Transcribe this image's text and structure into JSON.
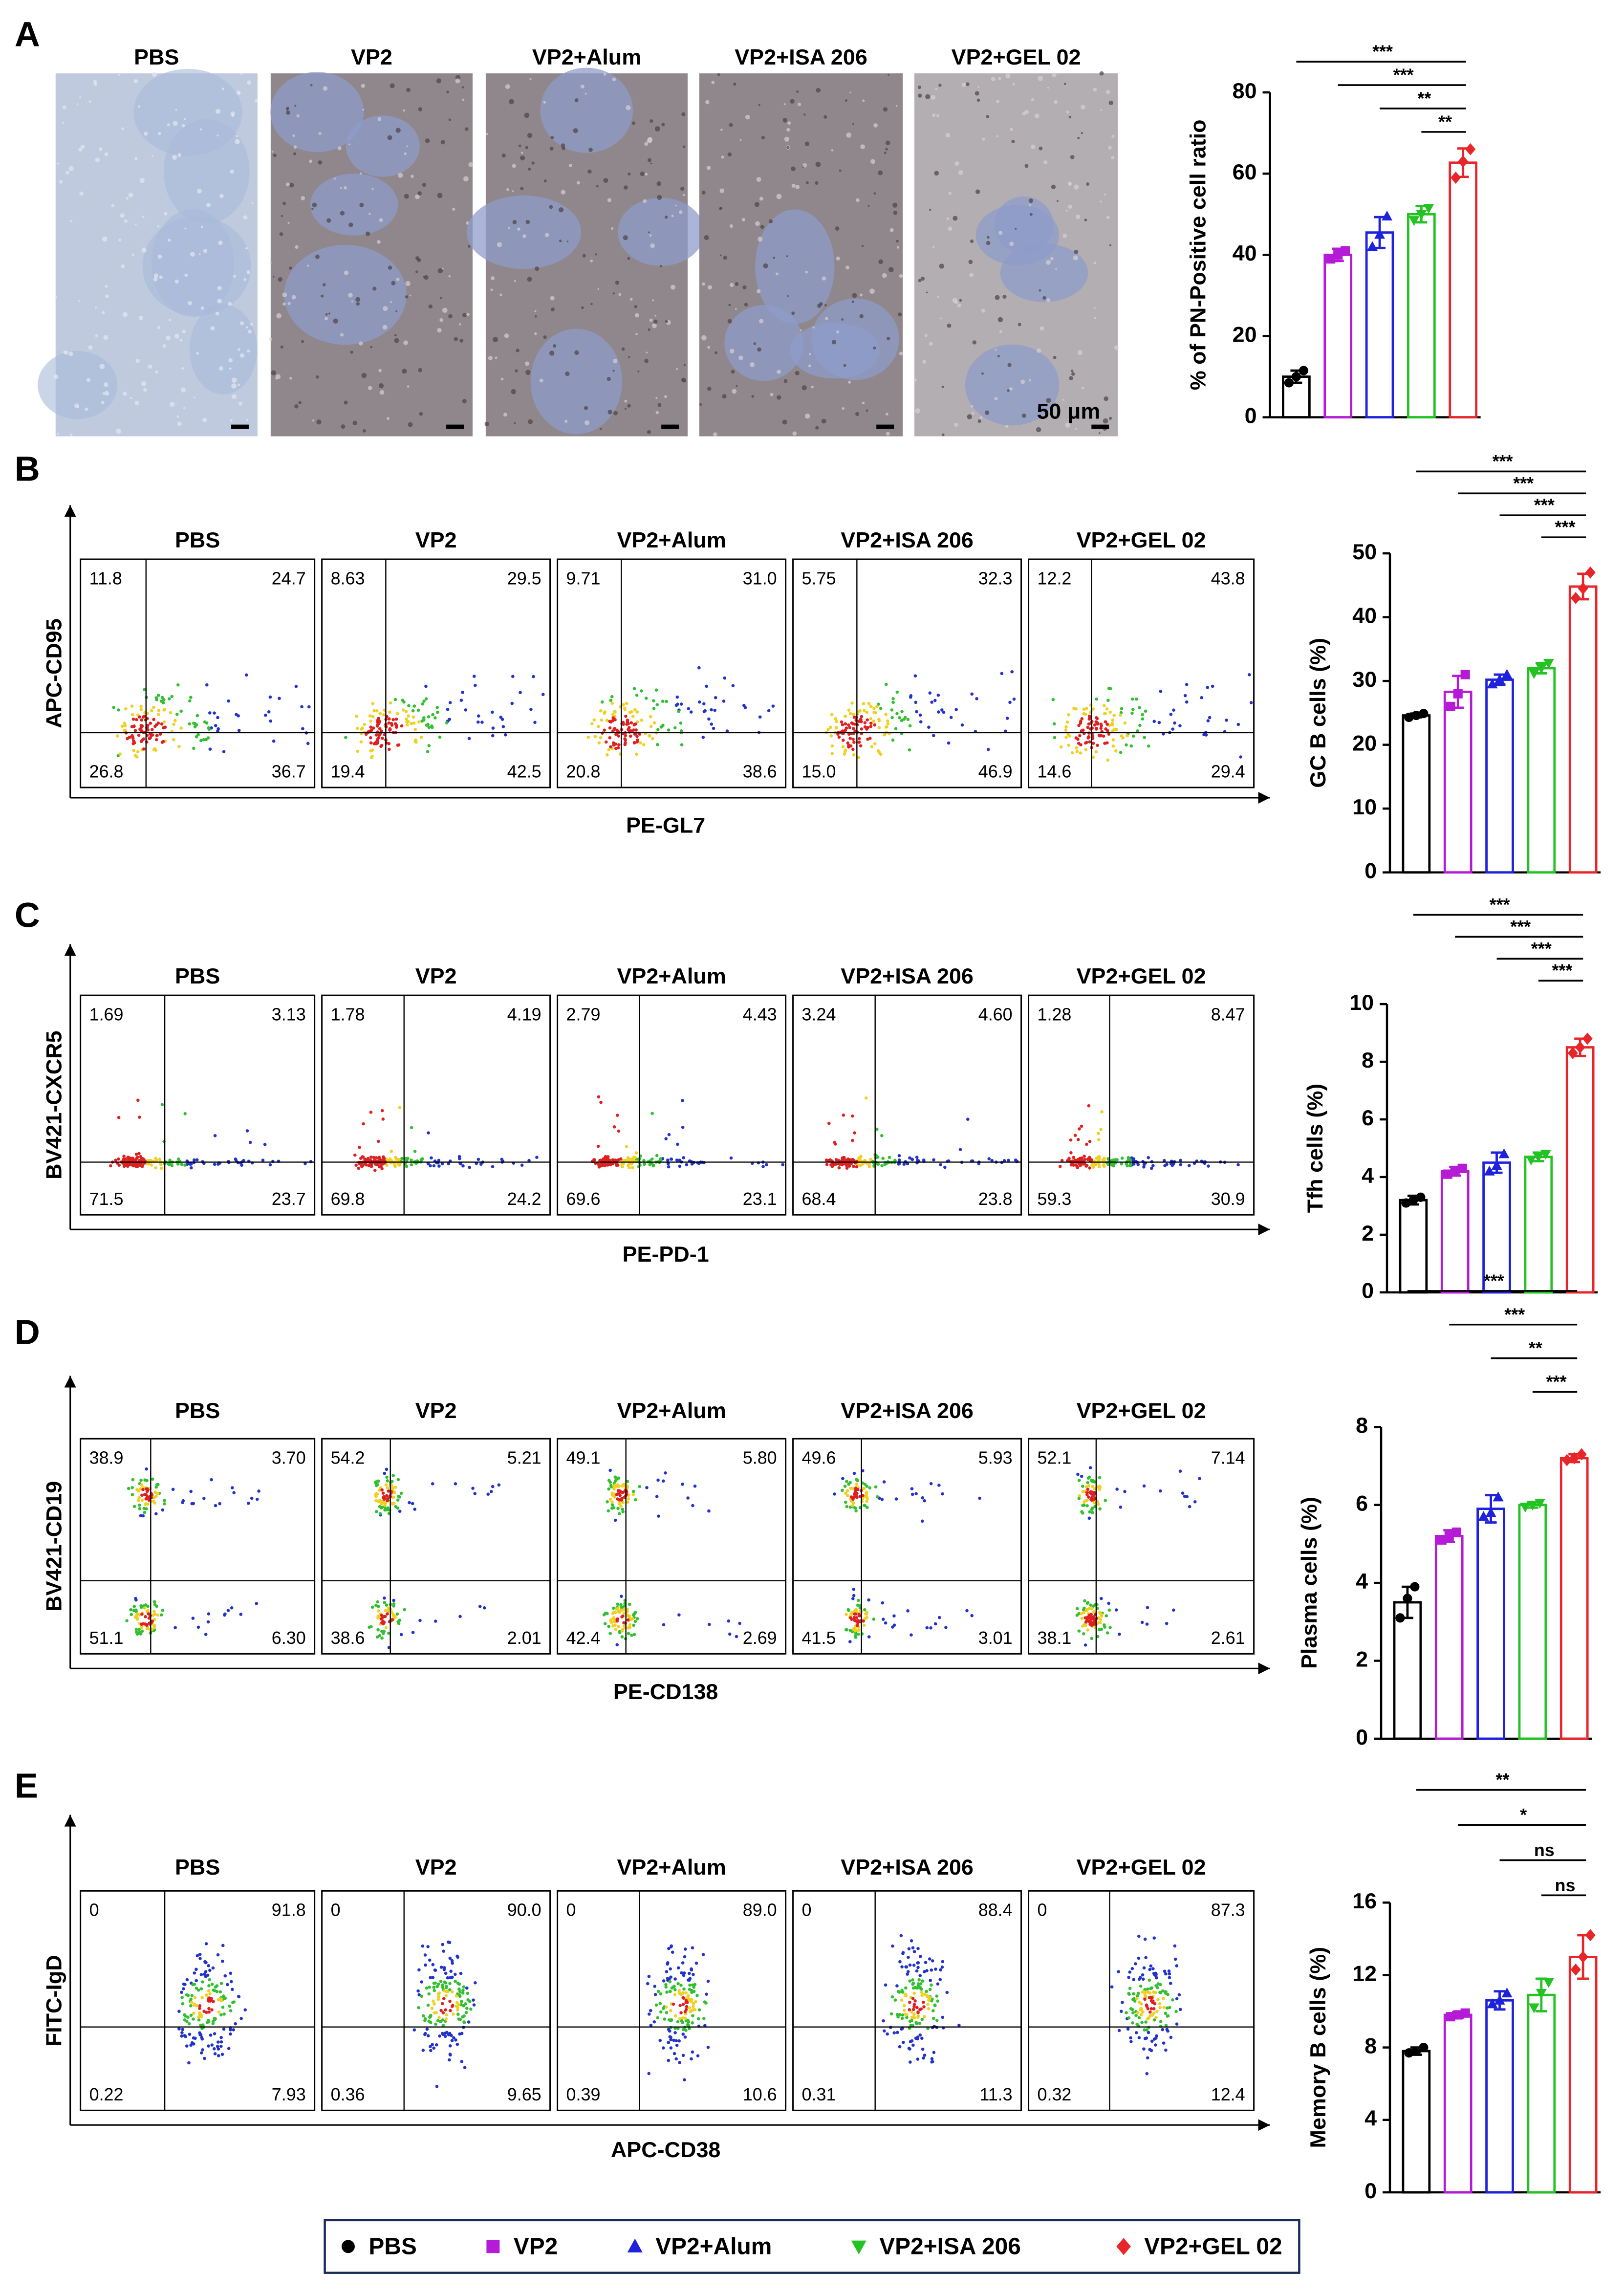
{
  "panel_letters": [
    "A",
    "B",
    "C",
    "D",
    "E"
  ],
  "histology": {
    "titles": [
      "PBS",
      "VP2",
      "VP2+Alum",
      "VP2+ISA 206",
      "VP2+GEL 02"
    ],
    "scale_bar": "50 μm"
  },
  "flow": [
    {
      "y_label": "APC-CD95",
      "x_label": "PE-GL7",
      "plots": [
        {
          "title": "PBS",
          "quadrants": [
            "11.8",
            "24.7",
            "26.8",
            "36.7"
          ]
        },
        {
          "title": "VP2",
          "quadrants": [
            "8.63",
            "29.5",
            "19.4",
            "42.5"
          ]
        },
        {
          "title": "VP2+Alum",
          "quadrants": [
            "9.71",
            "31.0",
            "20.8",
            "38.6"
          ]
        },
        {
          "title": "VP2+ISA 206",
          "quadrants": [
            "5.75",
            "32.3",
            "15.0",
            "46.9"
          ]
        },
        {
          "title": "VP2+GEL 02",
          "quadrants": [
            "12.2",
            "43.8",
            "14.6",
            "29.4"
          ]
        }
      ]
    },
    {
      "y_label": "BV421-CXCR5",
      "x_label": "PE-PD-1",
      "plots": [
        {
          "title": "PBS",
          "quadrants": [
            "1.69",
            "3.13",
            "71.5",
            "23.7"
          ]
        },
        {
          "title": "VP2",
          "quadrants": [
            "1.78",
            "4.19",
            "69.8",
            "24.2"
          ]
        },
        {
          "title": "VP2+Alum",
          "quadrants": [
            "2.79",
            "4.43",
            "69.6",
            "23.1"
          ]
        },
        {
          "title": "VP2+ISA 206",
          "quadrants": [
            "3.24",
            "4.60",
            "68.4",
            "23.8"
          ]
        },
        {
          "title": "VP2+GEL 02",
          "quadrants": [
            "1.28",
            "8.47",
            "59.3",
            "30.9"
          ]
        }
      ]
    },
    {
      "y_label": "BV421-CD19",
      "x_label": "PE-CD138",
      "plots": [
        {
          "title": "PBS",
          "quadrants": [
            "38.9",
            "3.70",
            "51.1",
            "6.30"
          ]
        },
        {
          "title": "VP2",
          "quadrants": [
            "54.2",
            "5.21",
            "38.6",
            "2.01"
          ]
        },
        {
          "title": "VP2+Alum",
          "quadrants": [
            "49.1",
            "5.80",
            "42.4",
            "2.69"
          ]
        },
        {
          "title": "VP2+ISA 206",
          "quadrants": [
            "49.6",
            "5.93",
            "41.5",
            "3.01"
          ]
        },
        {
          "title": "VP2+GEL 02",
          "quadrants": [
            "52.1",
            "7.14",
            "38.1",
            "2.61"
          ]
        }
      ]
    },
    {
      "y_label": "FITC-IgD",
      "x_label": "APC-CD38",
      "plots": [
        {
          "title": "PBS",
          "quadrants": [
            "0",
            "91.8",
            "0.22",
            "7.93"
          ]
        },
        {
          "title": "VP2",
          "quadrants": [
            "0",
            "90.0",
            "0.36",
            "9.65"
          ]
        },
        {
          "title": "VP2+Alum",
          "quadrants": [
            "0",
            "89.0",
            "0.39",
            "10.6"
          ]
        },
        {
          "title": "VP2+ISA 206",
          "quadrants": [
            "0",
            "88.4",
            "0.31",
            "11.3"
          ]
        },
        {
          "title": "VP2+GEL 02",
          "quadrants": [
            "0",
            "87.3",
            "0.32",
            "12.4"
          ]
        }
      ]
    }
  ],
  "chart_data": [
    {
      "type": "bar",
      "y_label": "% of PN-Positive cell ratio",
      "categories": [
        null,
        null,
        null,
        null,
        null
      ],
      "values": [
        10,
        40,
        45.5,
        50,
        62.7
      ],
      "errors": [
        1.5,
        1.5,
        3.8,
        2,
        3.5
      ],
      "points": [
        [
          8.5,
          10,
          11.5
        ],
        [
          39,
          40,
          41
        ],
        [
          42,
          45,
          49.5
        ],
        [
          48.5,
          50,
          51.5
        ],
        [
          59,
          63,
          66
        ]
      ],
      "ylim": [
        0,
        80
      ],
      "yticks": [
        0,
        20,
        40,
        60,
        80
      ],
      "significance": [
        "***",
        "***",
        "**",
        "**"
      ]
    },
    {
      "type": "bar",
      "y_label": "GC B cells (%)",
      "categories": [
        null,
        null,
        null,
        null,
        null
      ],
      "values": [
        24.6,
        28.3,
        30.2,
        32,
        44.8
      ],
      "errors": [
        0.3,
        2.5,
        0.8,
        0.8,
        2
      ],
      "points": [
        [
          24.3,
          24.6,
          24.9
        ],
        [
          26,
          28,
          31
        ],
        [
          29.5,
          30.2,
          31
        ],
        [
          31.2,
          32,
          32.8
        ],
        [
          43,
          44.5,
          47
        ]
      ],
      "ylim": [
        0,
        50
      ],
      "yticks": [
        0,
        10,
        20,
        30,
        40,
        50
      ],
      "significance": [
        "***",
        "***",
        "***",
        "***"
      ]
    },
    {
      "type": "bar",
      "y_label": "Tfh cells (%)",
      "categories": [
        null,
        null,
        null,
        null,
        null
      ],
      "values": [
        3.2,
        4.2,
        4.5,
        4.7,
        8.5
      ],
      "errors": [
        0.15,
        0.15,
        0.35,
        0.15,
        0.3
      ],
      "points": [
        [
          3.1,
          3.2,
          3.3
        ],
        [
          4.1,
          4.2,
          4.3
        ],
        [
          4.2,
          4.4,
          4.8
        ],
        [
          4.6,
          4.7,
          4.8
        ],
        [
          8.3,
          8.5,
          8.8
        ]
      ],
      "ylim": [
        0,
        10
      ],
      "yticks": [
        0,
        2,
        4,
        6,
        8,
        10
      ],
      "significance": [
        "***",
        "***",
        "***",
        "***"
      ]
    },
    {
      "type": "bar",
      "y_label": "Plasma cells (%)",
      "categories": [
        null,
        null,
        null,
        null,
        null
      ],
      "values": [
        3.5,
        5.2,
        5.9,
        6,
        7.2
      ],
      "errors": [
        0.4,
        0.15,
        0.35,
        0.07,
        0.1
      ],
      "points": [
        [
          3.1,
          3.6,
          3.9
        ],
        [
          5.1,
          5.2,
          5.3
        ],
        [
          5.7,
          5.8,
          6.2
        ],
        [
          5.95,
          6,
          6.05
        ],
        [
          7.15,
          7.2,
          7.3
        ]
      ],
      "ylim": [
        0,
        8
      ],
      "yticks": [
        0,
        2,
        4,
        6,
        8
      ],
      "significance": [
        "***",
        "***",
        "**",
        "***"
      ]
    },
    {
      "type": "bar",
      "y_label": "Memory B cells (%)",
      "categories": [
        null,
        null,
        null,
        null,
        null
      ],
      "values": [
        7.8,
        9.8,
        10.6,
        10.9,
        13
      ],
      "errors": [
        0.2,
        0.15,
        0.5,
        0.9,
        1.2
      ],
      "points": [
        [
          7.7,
          7.8,
          8
        ],
        [
          9.7,
          9.8,
          9.9
        ],
        [
          10.4,
          10.6,
          11
        ],
        [
          10.2,
          11,
          11.6
        ],
        [
          12.3,
          13,
          14.2
        ]
      ],
      "ylim": [
        0,
        16
      ],
      "yticks": [
        0,
        4,
        8,
        12,
        16
      ],
      "significance": [
        "**",
        "*",
        "ns",
        "ns"
      ]
    }
  ],
  "legend": [
    {
      "name": "PBS",
      "color": "#000000",
      "marker": "circle"
    },
    {
      "name": "VP2",
      "color": "#b51bd6",
      "marker": "square"
    },
    {
      "name": "VP2+Alum",
      "color": "#1f22dc",
      "marker": "triangle-up"
    },
    {
      "name": "VP2+ISA 206",
      "color": "#22c322",
      "marker": "triangle-down"
    },
    {
      "name": "VP2+GEL 02",
      "color": "#e8262a",
      "marker": "diamond"
    }
  ]
}
